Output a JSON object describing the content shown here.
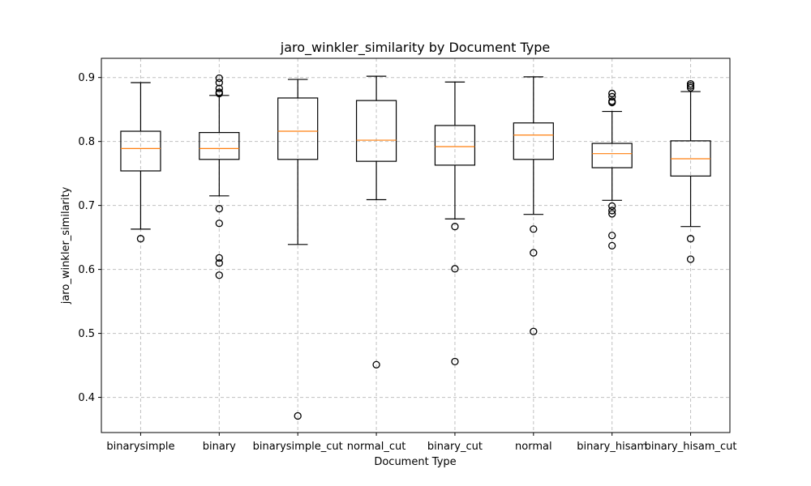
{
  "chart_data": {
    "type": "box",
    "title": "jaro_winkler_similarity by Document Type",
    "xlabel": "Document Type",
    "ylabel": "jaro_winkler_similarity",
    "ylim": [
      0.345,
      0.93
    ],
    "yticks": [
      0.4,
      0.5,
      0.6,
      0.7,
      0.8,
      0.9
    ],
    "ytick_labels": [
      "0.4",
      "0.5",
      "0.6",
      "0.7",
      "0.8",
      "0.9"
    ],
    "grid": true,
    "categories": [
      "binarysimple",
      "binary",
      "binarysimple_cut",
      "normal_cut",
      "binary_cut",
      "normal",
      "binary_hisam",
      "binary_hisam_cut"
    ],
    "boxes": [
      {
        "whisker_low": 0.663,
        "q1": 0.754,
        "median": 0.789,
        "q3": 0.816,
        "whisker_high": 0.892,
        "outliers": [
          0.648
        ]
      },
      {
        "whisker_low": 0.715,
        "q1": 0.772,
        "median": 0.789,
        "q3": 0.814,
        "whisker_high": 0.872,
        "outliers": [
          0.899,
          0.892,
          0.883,
          0.877,
          0.875,
          0.695,
          0.672,
          0.618,
          0.61,
          0.591
        ]
      },
      {
        "whisker_low": 0.639,
        "q1": 0.772,
        "median": 0.816,
        "q3": 0.868,
        "whisker_high": 0.897,
        "outliers": [
          0.371
        ]
      },
      {
        "whisker_low": 0.709,
        "q1": 0.769,
        "median": 0.802,
        "q3": 0.864,
        "whisker_high": 0.902,
        "outliers": [
          0.451
        ]
      },
      {
        "whisker_low": 0.679,
        "q1": 0.763,
        "median": 0.792,
        "q3": 0.825,
        "whisker_high": 0.893,
        "outliers": [
          0.667,
          0.601,
          0.456
        ]
      },
      {
        "whisker_low": 0.686,
        "q1": 0.772,
        "median": 0.81,
        "q3": 0.829,
        "whisker_high": 0.901,
        "outliers": [
          0.663,
          0.626,
          0.503
        ]
      },
      {
        "whisker_low": 0.708,
        "q1": 0.759,
        "median": 0.781,
        "q3": 0.797,
        "whisker_high": 0.847,
        "outliers": [
          0.875,
          0.87,
          0.863,
          0.861,
          0.699,
          0.692,
          0.687,
          0.653,
          0.637
        ]
      },
      {
        "whisker_low": 0.667,
        "q1": 0.746,
        "median": 0.773,
        "q3": 0.801,
        "whisker_high": 0.878,
        "outliers": [
          0.89,
          0.887,
          0.884,
          0.648,
          0.616
        ]
      }
    ],
    "colors": {
      "box": "#000000",
      "median": "#ff7f0e",
      "grid": "#c0c0c0"
    }
  }
}
